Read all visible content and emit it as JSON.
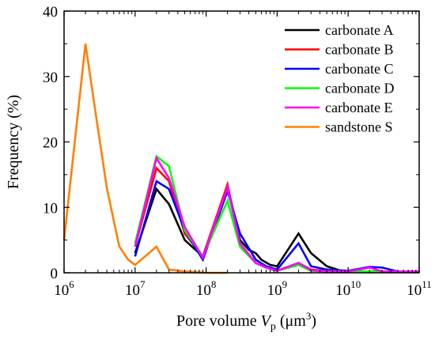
{
  "chart_data": {
    "type": "line",
    "title": "",
    "xlabel": {
      "prefix": "Pore volume ",
      "symbol": "V",
      "subscript": "p",
      "unit_open": " (μm",
      "unit_power": "3",
      "unit_close": ")"
    },
    "ylabel": "Frequency (%)",
    "x_scale": "log",
    "xlim": [
      1000000,
      100000000000
    ],
    "ylim": [
      0,
      40
    ],
    "x_ticks": [
      {
        "value": 1000000,
        "base": "10",
        "exp": "6"
      },
      {
        "value": 10000000,
        "base": "10",
        "exp": "7"
      },
      {
        "value": 100000000,
        "base": "10",
        "exp": "8"
      },
      {
        "value": 1000000000,
        "base": "10",
        "exp": "9"
      },
      {
        "value": 10000000000,
        "base": "10",
        "exp": "10"
      },
      {
        "value": 100000000000,
        "base": "10",
        "exp": "11"
      }
    ],
    "y_ticks": [
      0,
      10,
      20,
      30,
      40
    ],
    "grid": false,
    "legend_position": "top-right",
    "series": [
      {
        "name": "carbonate A",
        "color": "#000000",
        "points": [
          [
            10000000,
            3.0
          ],
          [
            20000000,
            12.8
          ],
          [
            30000000,
            10.5
          ],
          [
            50000000,
            5.0
          ],
          [
            90000000,
            2.5
          ],
          [
            200000000,
            13.3
          ],
          [
            300000000,
            5.0
          ],
          [
            400000000,
            3.5
          ],
          [
            500000000,
            3.0
          ],
          [
            600000000,
            2.0
          ],
          [
            800000000,
            1.2
          ],
          [
            1000000000,
            1.0
          ],
          [
            2000000000,
            6.0
          ],
          [
            3000000000,
            3.0
          ],
          [
            5000000000,
            1.0
          ],
          [
            8000000000,
            0.3
          ],
          [
            10000000000,
            0.2
          ],
          [
            20000000000,
            0.8
          ],
          [
            30000000000,
            0.2
          ],
          [
            50000000000,
            0.2
          ],
          [
            100000000000,
            0.2
          ]
        ]
      },
      {
        "name": "carbonate B",
        "color": "#ff0000",
        "points": [
          [
            10000000,
            4.0
          ],
          [
            20000000,
            16.0
          ],
          [
            30000000,
            14.0
          ],
          [
            50000000,
            6.0
          ],
          [
            90000000,
            2.5
          ],
          [
            200000000,
            13.5
          ],
          [
            300000000,
            4.0
          ],
          [
            500000000,
            1.5
          ],
          [
            700000000,
            0.8
          ],
          [
            1000000000,
            0.3
          ],
          [
            2000000000,
            1.5
          ],
          [
            3000000000,
            0.5
          ],
          [
            5000000000,
            0.3
          ],
          [
            10000000000,
            0.2
          ],
          [
            20000000000,
            0.8
          ],
          [
            30000000000,
            0.2
          ],
          [
            100000000000,
            0.2
          ]
        ]
      },
      {
        "name": "carbonate C",
        "color": "#0000ff",
        "points": [
          [
            10000000,
            2.5
          ],
          [
            20000000,
            14.0
          ],
          [
            30000000,
            12.8
          ],
          [
            50000000,
            6.5
          ],
          [
            90000000,
            2.0
          ],
          [
            200000000,
            12.5
          ],
          [
            300000000,
            6.0
          ],
          [
            500000000,
            2.0
          ],
          [
            700000000,
            1.0
          ],
          [
            1000000000,
            0.5
          ],
          [
            2000000000,
            4.5
          ],
          [
            3000000000,
            1.0
          ],
          [
            5000000000,
            0.5
          ],
          [
            10000000000,
            0.3
          ],
          [
            20000000000,
            0.9
          ],
          [
            30000000000,
            0.8
          ],
          [
            50000000000,
            0.2
          ],
          [
            100000000000,
            0.2
          ]
        ]
      },
      {
        "name": "carbonate D",
        "color": "#00ff00",
        "points": [
          [
            10000000,
            4.5
          ],
          [
            20000000,
            17.8
          ],
          [
            30000000,
            16.3
          ],
          [
            50000000,
            6.5
          ],
          [
            90000000,
            2.5
          ],
          [
            200000000,
            11.0
          ],
          [
            300000000,
            4.0
          ],
          [
            500000000,
            1.5
          ],
          [
            700000000,
            0.8
          ],
          [
            1000000000,
            0.3
          ],
          [
            2000000000,
            1.2
          ],
          [
            3000000000,
            0.3
          ],
          [
            10000000000,
            0.2
          ],
          [
            100000000000,
            0.2
          ]
        ]
      },
      {
        "name": "carbonate E",
        "color": "#ff00ff",
        "points": [
          [
            10000000,
            4.0
          ],
          [
            20000000,
            17.5
          ],
          [
            30000000,
            14.5
          ],
          [
            50000000,
            7.0
          ],
          [
            90000000,
            2.3
          ],
          [
            200000000,
            13.0
          ],
          [
            300000000,
            4.5
          ],
          [
            500000000,
            1.5
          ],
          [
            700000000,
            0.8
          ],
          [
            1000000000,
            0.3
          ],
          [
            2000000000,
            1.5
          ],
          [
            3000000000,
            0.4
          ],
          [
            5000000000,
            0.2
          ],
          [
            10000000000,
            0.2
          ],
          [
            20000000000,
            0.8
          ],
          [
            30000000000,
            0.2
          ],
          [
            100000000000,
            0.2
          ]
        ]
      },
      {
        "name": "sandstone S",
        "color": "#ff8000",
        "points": [
          [
            1000000,
            5.0
          ],
          [
            2000000,
            35.0
          ],
          [
            3000000,
            22.0
          ],
          [
            4000000,
            13.0
          ],
          [
            5000000,
            8.0
          ],
          [
            6000000,
            4.0
          ],
          [
            8000000,
            2.0
          ],
          [
            10000000,
            1.2
          ],
          [
            20000000,
            4.0
          ],
          [
            30000000,
            0.5
          ],
          [
            50000000,
            0.2
          ],
          [
            100000000,
            0.0
          ],
          [
            200000000,
            0.0
          ]
        ]
      }
    ]
  }
}
